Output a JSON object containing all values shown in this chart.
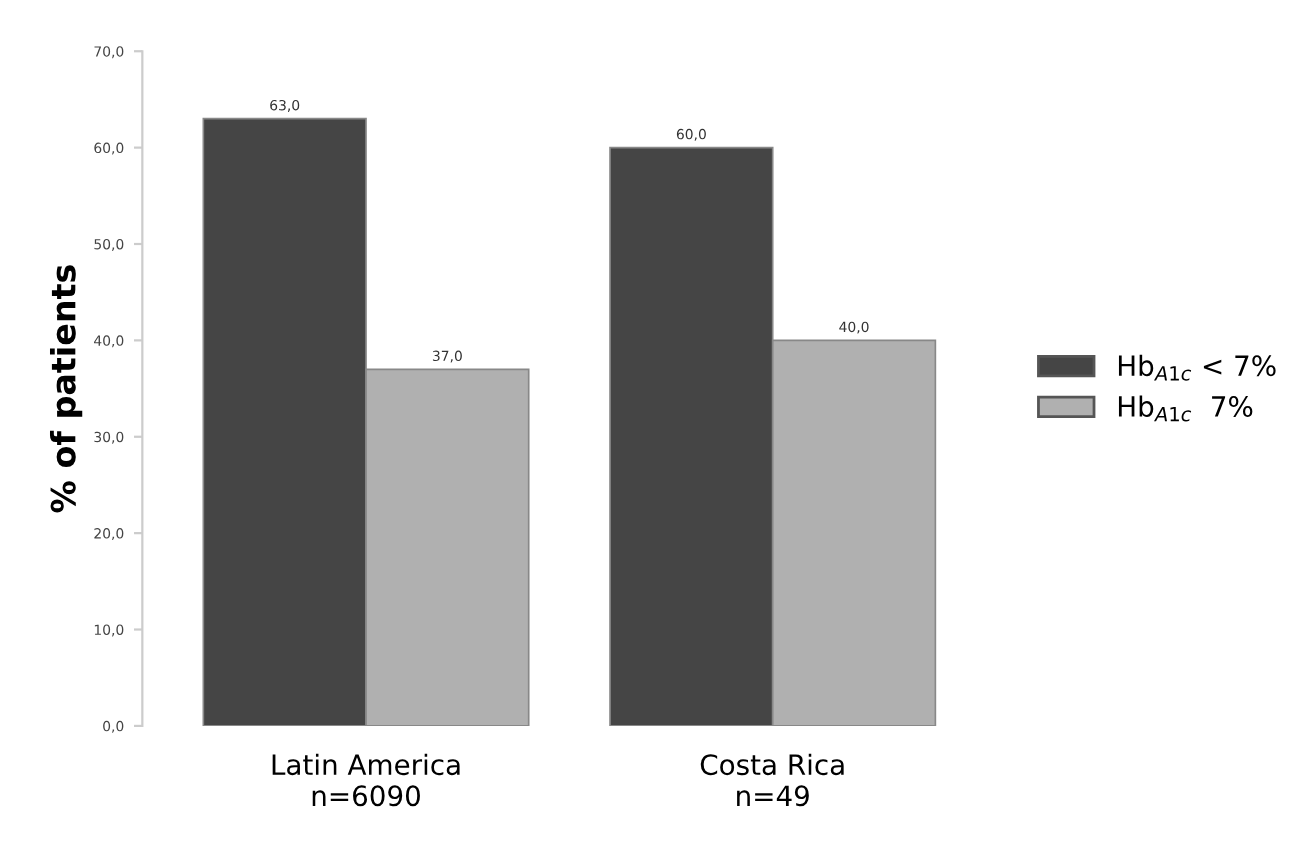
{
  "chart_data": {
    "type": "bar",
    "ylabel": "% of patients",
    "categories": [
      "Latin America\nn=6090",
      "Costa Rica\nn=49"
    ],
    "series": [
      {
        "name": "Hb$_{A1c}$ < 7%",
        "color": "#454545",
        "values": [
          63.0,
          60.0
        ],
        "value_labels": [
          "63,0",
          "60,0"
        ]
      },
      {
        "name": "Hb$_{A1c}$  7%",
        "color": "#b0b0b0",
        "values": [
          37.0,
          40.0
        ],
        "value_labels": [
          "37,0",
          "40,0"
        ]
      }
    ],
    "ylim": [
      0,
      70
    ],
    "yticks": [
      {
        "value": 0,
        "label": "0,0"
      },
      {
        "value": 10,
        "label": "10,0"
      },
      {
        "value": 20,
        "label": "20,0"
      },
      {
        "value": 30,
        "label": "30,0"
      },
      {
        "value": 40,
        "label": "40,0"
      },
      {
        "value": 50,
        "label": "50,0"
      },
      {
        "value": 60,
        "label": "60,0"
      },
      {
        "value": 70,
        "label": "70,0"
      }
    ],
    "grid": false,
    "legend": "right"
  }
}
